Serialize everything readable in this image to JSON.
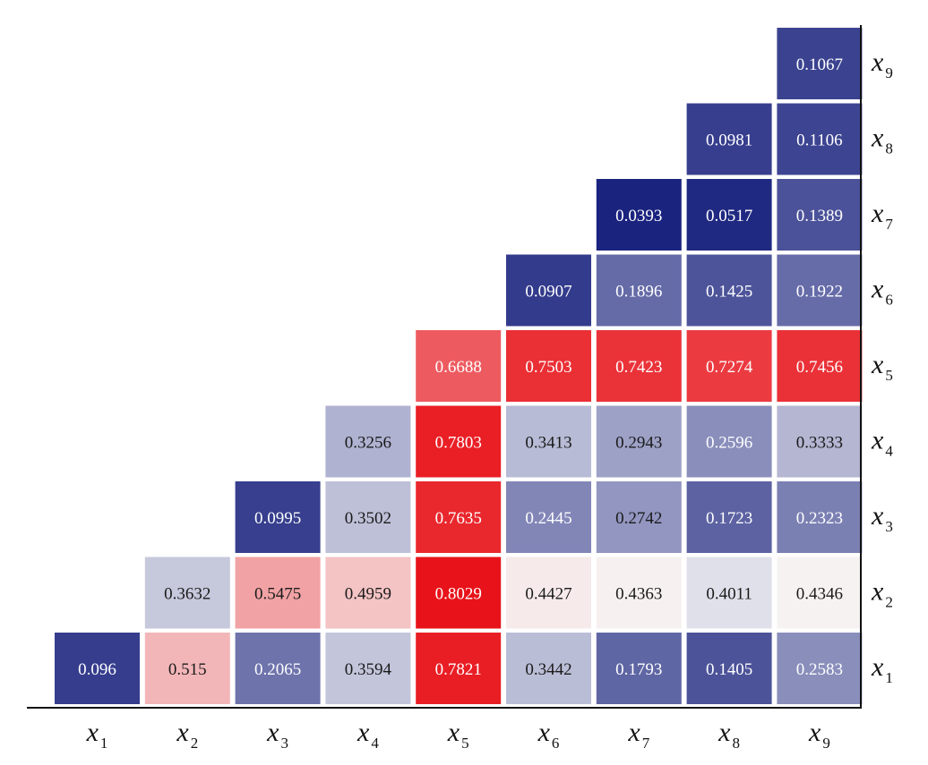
{
  "chart_data": {
    "type": "heatmap",
    "title": "",
    "xlabel": "",
    "ylabel": "",
    "shape": "lower-triangular",
    "x_tick_labels": [
      {
        "base": "x",
        "sub": "1"
      },
      {
        "base": "x",
        "sub": "2"
      },
      {
        "base": "x",
        "sub": "3"
      },
      {
        "base": "x",
        "sub": "4"
      },
      {
        "base": "x",
        "sub": "5"
      },
      {
        "base": "x",
        "sub": "6"
      },
      {
        "base": "x",
        "sub": "7"
      },
      {
        "base": "x",
        "sub": "8"
      },
      {
        "base": "x",
        "sub": "9"
      }
    ],
    "y_tick_labels": [
      {
        "base": "x",
        "sub": "1"
      },
      {
        "base": "x",
        "sub": "2"
      },
      {
        "base": "x",
        "sub": "3"
      },
      {
        "base": "x",
        "sub": "4"
      },
      {
        "base": "x",
        "sub": "5"
      },
      {
        "base": "x",
        "sub": "6"
      },
      {
        "base": "x",
        "sub": "7"
      },
      {
        "base": "x",
        "sub": "8"
      },
      {
        "base": "x",
        "sub": "9"
      }
    ],
    "y_axis_position": "right",
    "y_order": "x1 at bottom",
    "rows": [
      {
        "row": "x1",
        "values": [
          "0.096",
          "0.515",
          "0.2065",
          "0.3594",
          "0.7821",
          "0.3442",
          "0.1793",
          "0.1405",
          "0.2583"
        ]
      },
      {
        "row": "x2",
        "values": [
          "0.3632",
          "0.5475",
          "0.4959",
          "0.8029",
          "0.4427",
          "0.4363",
          "0.4011",
          "0.4346"
        ]
      },
      {
        "row": "x3",
        "values": [
          "0.0995",
          "0.3502",
          "0.7635",
          "0.2445",
          "0.2742",
          "0.1723",
          "0.2323"
        ]
      },
      {
        "row": "x4",
        "values": [
          "0.3256",
          "0.7803",
          "0.3413",
          "0.2943",
          "0.2596",
          "0.3333"
        ]
      },
      {
        "row": "x5",
        "values": [
          "0.6688",
          "0.7503",
          "0.7423",
          "0.7274",
          "0.7456"
        ]
      },
      {
        "row": "x6",
        "values": [
          "0.0907",
          "0.1896",
          "0.1425",
          "0.1922"
        ]
      },
      {
        "row": "x7",
        "values": [
          "0.0393",
          "0.0517",
          "0.1389"
        ]
      },
      {
        "row": "x8",
        "values": [
          "0.0981",
          "0.1106"
        ]
      },
      {
        "row": "x9",
        "values": [
          "0.1067"
        ]
      }
    ],
    "colormap": {
      "low": "#1a237e",
      "mid": "#f7f7f7",
      "high": "#e8131a",
      "min": 0.0393,
      "center": 0.43,
      "max": 0.8029
    },
    "grid": false,
    "legend": "none"
  }
}
